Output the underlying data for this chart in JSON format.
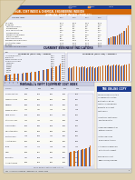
{
  "page_bg": "#ddd0b0",
  "content_bg": "#f5efe0",
  "white": "#fafaf5",
  "header_blue": "#1a3a8f",
  "header_orange": "#d4680a",
  "orange": "#d4680a",
  "blue": "#3355aa",
  "top_strip_blue": "#1a3a8f",
  "top_strip_orange": "#e07820",
  "legend_blue_box": "#334499",
  "legend_orange_box": "#dd7722",
  "section_header_bg": "#d0d8e8",
  "section_header_text": "#111133",
  "online_header_bg": "#d4680a",
  "table_line": "#cccccc",
  "text_dark": "#222222",
  "text_gray": "#555555"
}
